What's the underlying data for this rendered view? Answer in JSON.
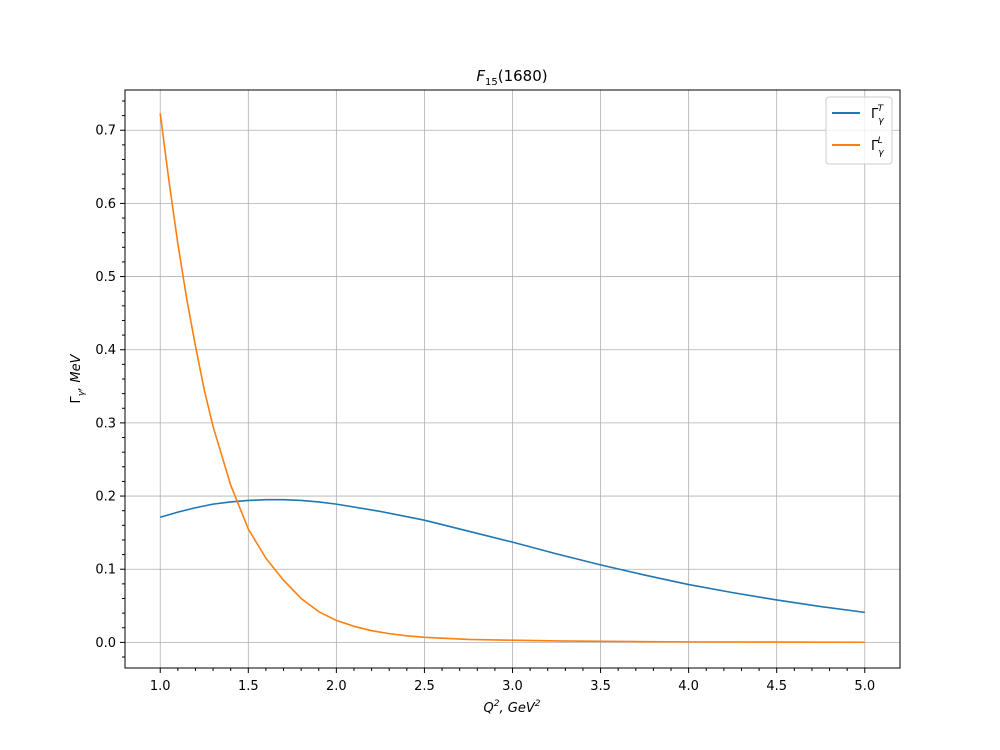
{
  "chart_data": {
    "type": "line",
    "title": "F15(1680)",
    "title_parts": {
      "main": "F",
      "sub": "15",
      "rest": "(1680)"
    },
    "xlabel": "Q2, GeV2",
    "xlabel_parts": {
      "a": "Q",
      "a_sup": "2",
      "b": ", GeV",
      "b_sup": "2"
    },
    "ylabel": "Γγ,  MeV",
    "ylabel_parts": {
      "a": "Γ",
      "a_sub": "γ",
      "b": ",  MeV"
    },
    "xlim": [
      0.8,
      5.2
    ],
    "ylim": [
      -0.035,
      0.755
    ],
    "xticks": [
      1.0,
      1.5,
      2.0,
      2.5,
      3.0,
      3.5,
      4.0,
      4.5,
      5.0
    ],
    "xtick_labels": [
      "1.0",
      "1.5",
      "2.0",
      "2.5",
      "3.0",
      "3.5",
      "4.0",
      "4.5",
      "5.0"
    ],
    "yticks": [
      0.0,
      0.1,
      0.2,
      0.3,
      0.4,
      0.5,
      0.6,
      0.7
    ],
    "ytick_labels": [
      "0.0",
      "0.1",
      "0.2",
      "0.3",
      "0.4",
      "0.5",
      "0.6",
      "0.7"
    ],
    "grid": true,
    "legend_position": "top-right",
    "series": [
      {
        "name": "ΓγT",
        "label_base": "Γ",
        "label_sub": "γ",
        "label_sup": "T",
        "color": "#1f77b4",
        "x": [
          1.0,
          1.1,
          1.2,
          1.3,
          1.4,
          1.5,
          1.6,
          1.7,
          1.8,
          1.9,
          2.0,
          2.25,
          2.5,
          2.75,
          3.0,
          3.25,
          3.5,
          3.75,
          4.0,
          4.25,
          4.5,
          4.75,
          5.0
        ],
        "y": [
          0.171,
          0.178,
          0.184,
          0.189,
          0.192,
          0.194,
          0.195,
          0.195,
          0.194,
          0.192,
          0.189,
          0.179,
          0.167,
          0.152,
          0.137,
          0.121,
          0.106,
          0.092,
          0.079,
          0.068,
          0.058,
          0.049,
          0.041
        ]
      },
      {
        "name": "ΓγL",
        "label_base": "Γ",
        "label_sub": "γ",
        "label_sup": "L",
        "color": "#ff7f0e",
        "x": [
          1.0,
          1.05,
          1.1,
          1.15,
          1.2,
          1.25,
          1.3,
          1.35,
          1.4,
          1.45,
          1.5,
          1.55,
          1.6,
          1.65,
          1.7,
          1.8,
          1.9,
          2.0,
          2.1,
          2.2,
          2.3,
          2.4,
          2.5,
          2.75,
          3.0,
          3.25,
          3.5,
          3.75,
          4.0,
          4.5,
          5.0
        ],
        "y": [
          0.723,
          0.63,
          0.545,
          0.47,
          0.405,
          0.345,
          0.295,
          0.255,
          0.215,
          0.185,
          0.155,
          0.135,
          0.115,
          0.1,
          0.085,
          0.06,
          0.042,
          0.03,
          0.022,
          0.016,
          0.012,
          0.009,
          0.007,
          0.004,
          0.003,
          0.002,
          0.0015,
          0.001,
          0.0007,
          0.0004,
          0.0002
        ]
      }
    ]
  }
}
